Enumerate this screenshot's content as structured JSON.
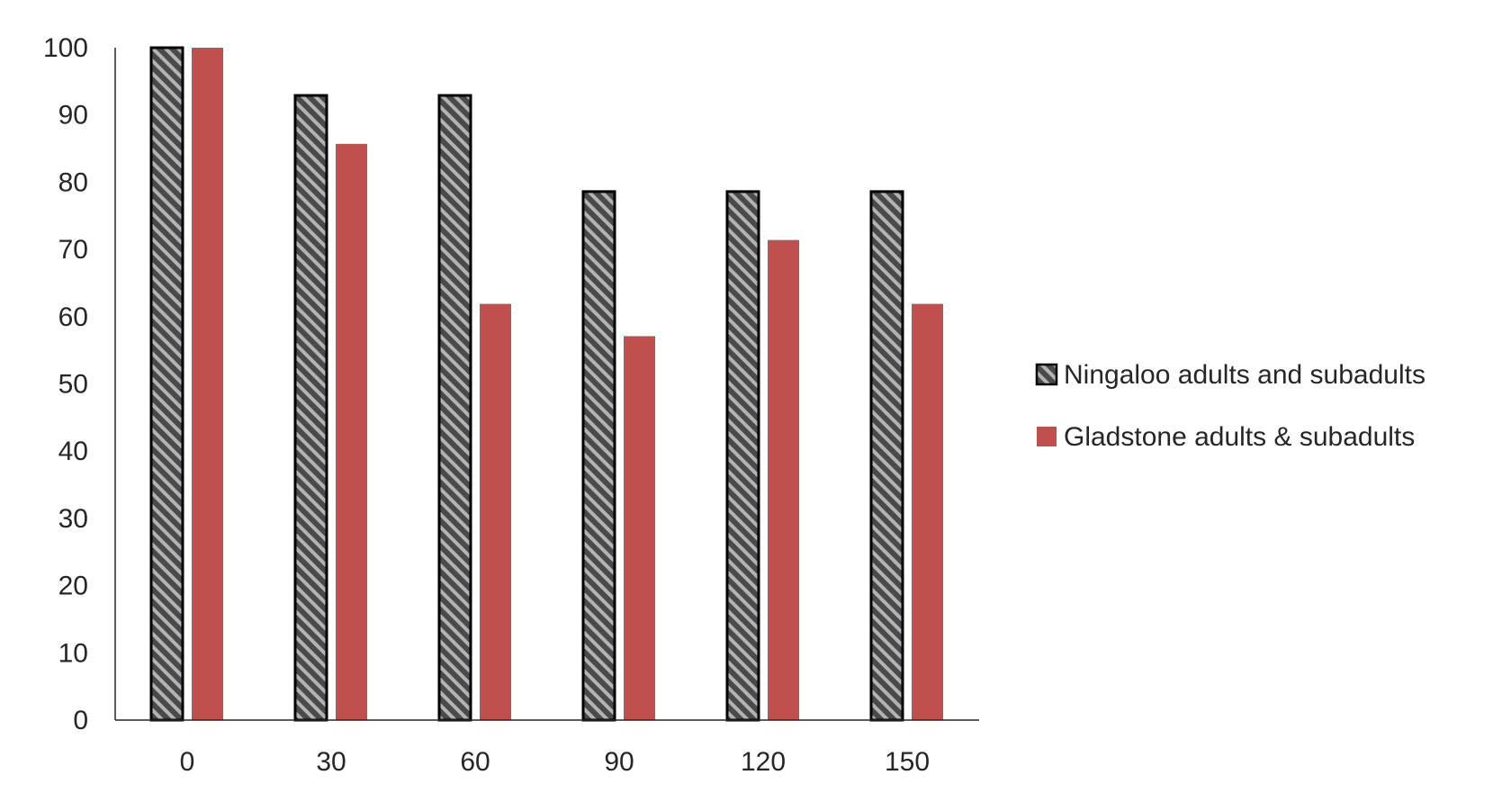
{
  "chart_data": {
    "type": "bar",
    "title": "",
    "xlabel": "",
    "ylabel": "",
    "categories": [
      "0",
      "30",
      "60",
      "90",
      "120",
      "150"
    ],
    "ylim": [
      0,
      100
    ],
    "yticks": [
      "0",
      "10",
      "20",
      "30",
      "40",
      "50",
      "60",
      "70",
      "80",
      "90",
      "100"
    ],
    "grid": false,
    "legend_position": "right",
    "series": [
      {
        "name": "Ningaloo adults and subadults",
        "values": [
          100,
          92.9,
          92.9,
          78.6,
          78.6,
          78.6
        ],
        "color": "#595959",
        "pattern": "diagonal-stripes",
        "outline": "#000000"
      },
      {
        "name": "Gladstone adults & subadults",
        "values": [
          100,
          85.7,
          61.9,
          57.1,
          71.4,
          61.9
        ],
        "color": "#C0504D",
        "pattern": "solid"
      }
    ]
  }
}
